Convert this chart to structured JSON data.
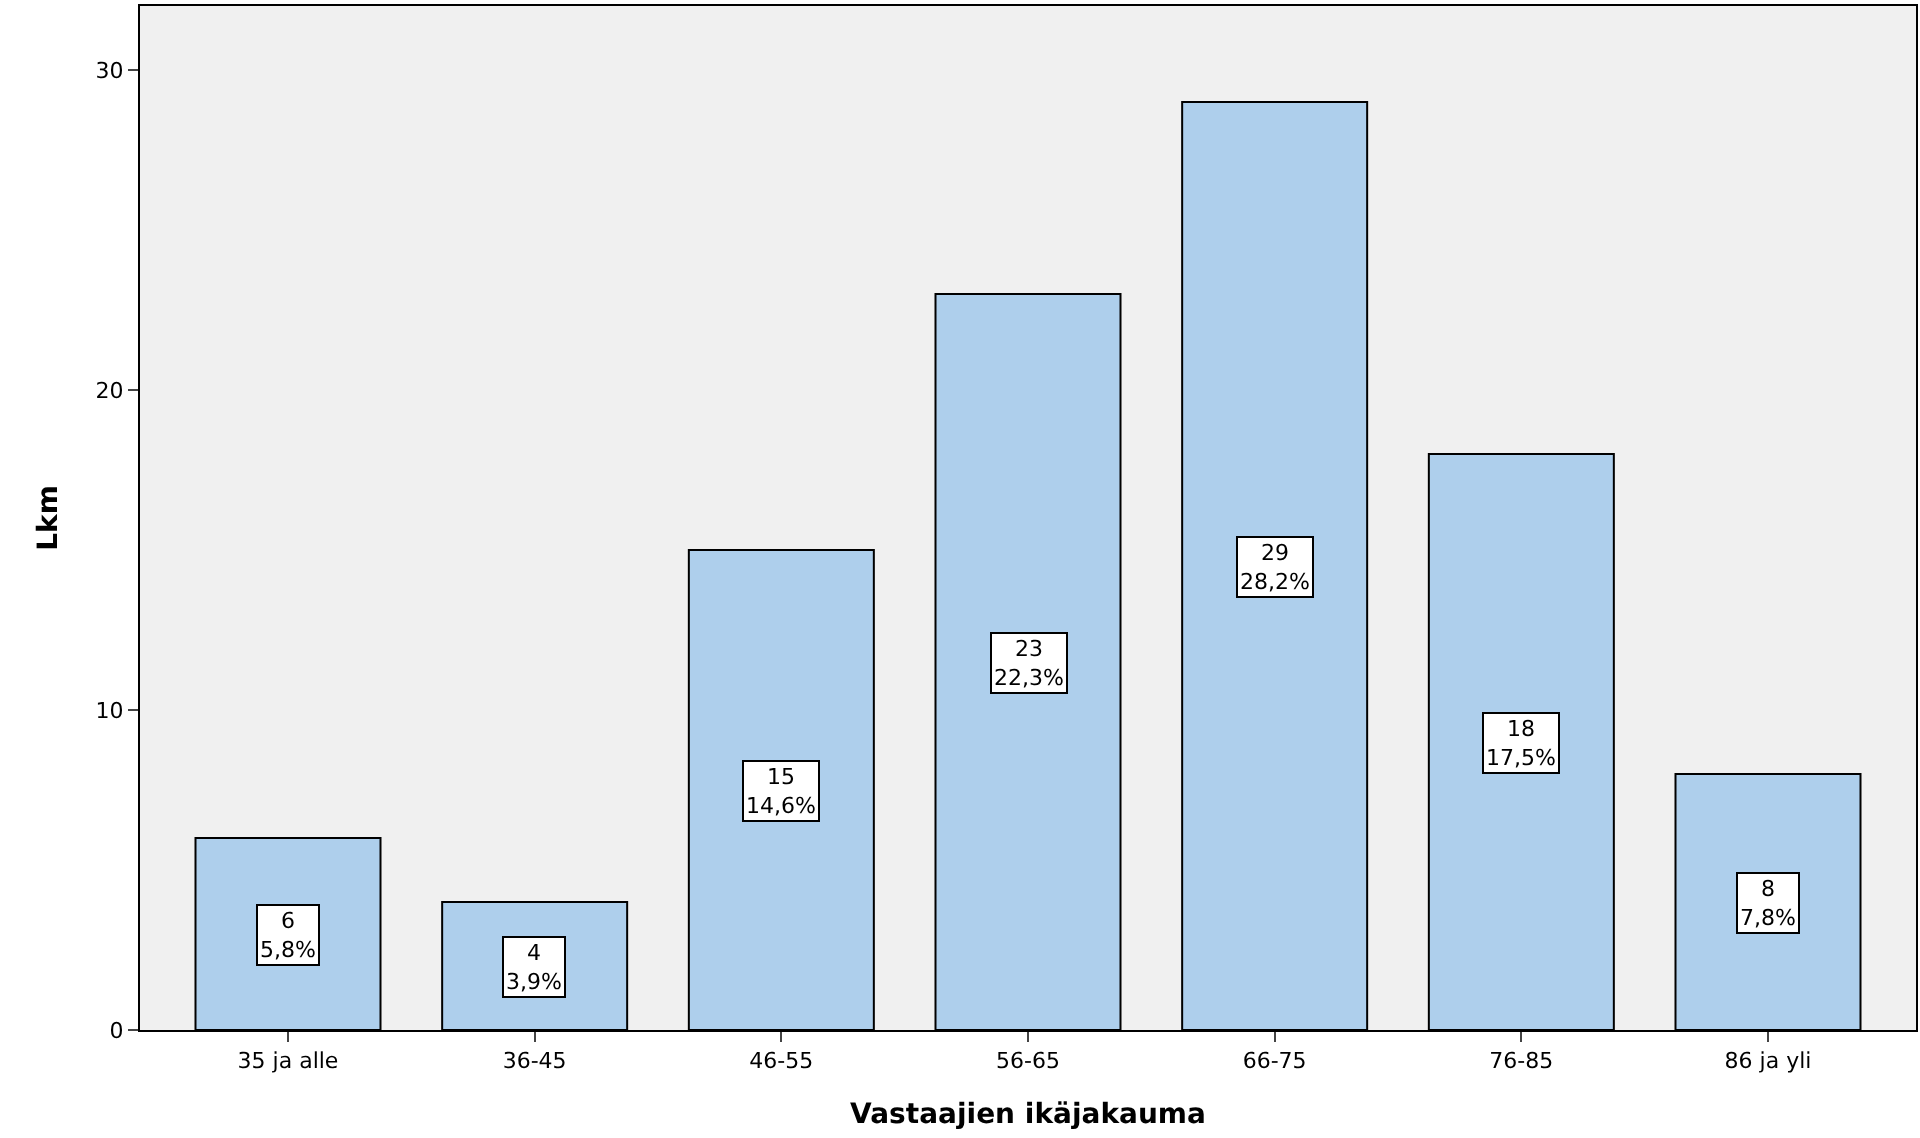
{
  "chart_data": {
    "type": "bar",
    "xlabel": "Vastaajien ikäjakauma",
    "ylabel": "Lkm",
    "categories": [
      "35 ja alle",
      "36-45",
      "46-55",
      "56-65",
      "66-75",
      "76-85",
      "86 ja yli"
    ],
    "values": [
      6,
      4,
      15,
      23,
      29,
      18,
      8
    ],
    "value_labels": [
      "6\n5,8%",
      "4\n3,9%",
      "15\n14,6%",
      "23\n22,3%",
      "29\n28,2%",
      "18\n17,5%",
      "8\n7,8%"
    ],
    "color": "#aecfec",
    "ylim": [
      0,
      32
    ],
    "yticks": [
      0,
      10,
      20,
      30
    ],
    "grid": false,
    "legend": false
  }
}
